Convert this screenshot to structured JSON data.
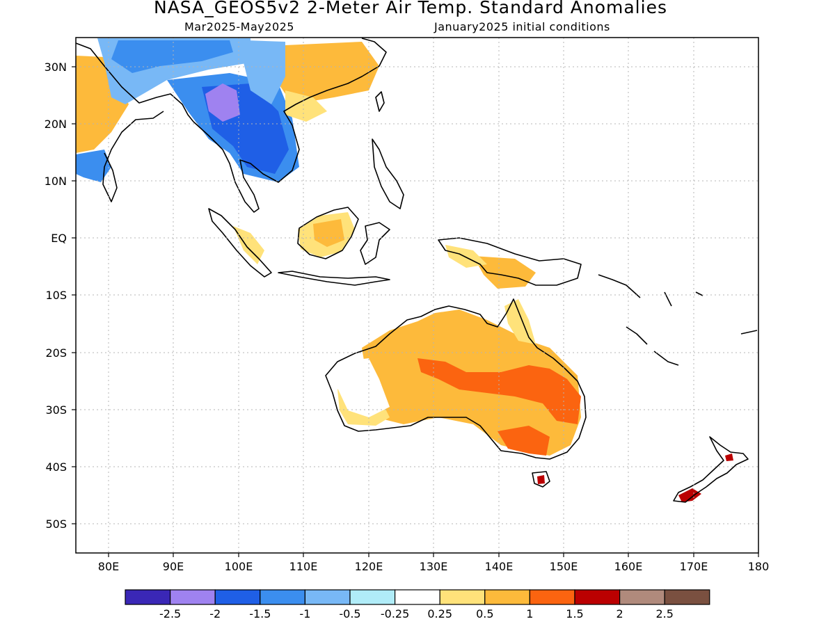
{
  "title": "NASA_GEOS5v2 2-Meter Air Temp. Standard Anomalies",
  "subtitle_left": "Mar2025-May2025",
  "subtitle_right": "January2025 initial conditions",
  "map": {
    "projection": "cylindrical",
    "lon_range": [
      75,
      180
    ],
    "lat_range": [
      -55,
      35
    ],
    "gridlines": true,
    "lon_ticks": [
      "80E",
      "90E",
      "100E",
      "110E",
      "120E",
      "130E",
      "140E",
      "150E",
      "160E",
      "170E",
      "180"
    ],
    "lat_ticks": [
      "30N",
      "20N",
      "10N",
      "EQ",
      "10S",
      "20S",
      "30S",
      "40S",
      "50S"
    ]
  },
  "colorbar": {
    "colors": [
      "#3a27b6",
      "#9f82f0",
      "#1f5fe6",
      "#3b8eef",
      "#78b8f6",
      "#b0ecf8",
      "#ffffff",
      "#ffe27a",
      "#fdba3b",
      "#fb6410",
      "#bb0001",
      "#b08a7c",
      "#7a5040"
    ],
    "labels": [
      "-2.5",
      "-2",
      "-1.5",
      "-1",
      "-0.5",
      "-0.25",
      "0.25",
      "0.5",
      "1",
      "1.5",
      "2",
      "2.5"
    ]
  }
}
